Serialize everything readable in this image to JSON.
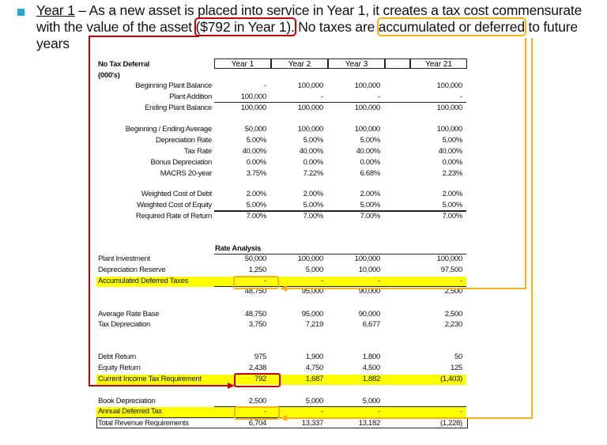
{
  "slide": {
    "intro_underlined": "Year 1",
    "intro_text_1": " – As a new asset is placed into service in Year 1, it creates a tax cost commensurate with the value of the asset ",
    "highlight_red": "($792 in Year 1).",
    "intro_text_2": " No taxes are ",
    "highlight_orange": "accumulated or deferred",
    "intro_text_3": " to future years",
    "colors": {
      "bullet": "#2fa8d0",
      "red_annotation": "#c00000",
      "orange_annotation": "#f5b21b",
      "highlight": "#ffff00"
    }
  },
  "table": {
    "title": "No Tax Deferral",
    "units": "(000's)",
    "columns": [
      "Year 1",
      "Year 2",
      "Year 3",
      "...",
      "Year 21"
    ],
    "section_title": "Rate Analysis",
    "rows": [
      {
        "label": "Beginning Plant Balance",
        "values": [
          "-",
          "100,000",
          "100,000",
          "100,000"
        ]
      },
      {
        "label": "Plant Addition",
        "values": [
          "100,000",
          "-",
          "-",
          "-"
        ]
      },
      {
        "label": "Ending Plant Balance",
        "values": [
          "100,000",
          "100,000",
          "100,000",
          "100,000"
        ]
      },
      {
        "label": "Beginning / Ending Average",
        "values": [
          "50,000",
          "100,000",
          "100,000",
          "100,000"
        ]
      },
      {
        "label": "Depreciation Rate",
        "values": [
          "5.00%",
          "5.00%",
          "5.00%",
          "5.00%"
        ]
      },
      {
        "label": "Tax Rate",
        "values": [
          "40.00%",
          "40.00%",
          "40.00%",
          "40.00%"
        ]
      },
      {
        "label": "Bonus Depreciation",
        "values": [
          "0.00%",
          "0.00%",
          "0.00%",
          "0.00%"
        ]
      },
      {
        "label": "MACRS 20-year",
        "values": [
          "3.75%",
          "7.22%",
          "6.68%",
          "2.23%"
        ]
      },
      {
        "label": "Weighted Cost of Debt",
        "values": [
          "2.00%",
          "2.00%",
          "2.00%",
          "2.00%"
        ]
      },
      {
        "label": "Weighted Cost of Equity",
        "values": [
          "5.00%",
          "5.00%",
          "5.00%",
          "5.00%"
        ]
      },
      {
        "label": "Required Rate of Return",
        "values": [
          "7.00%",
          "7.00%",
          "7.00%",
          "7.00%"
        ]
      },
      {
        "label": "Plant Investment",
        "values": [
          "50,000",
          "100,000",
          "100,000",
          "100,000"
        ]
      },
      {
        "label": "Depreciation Reserve",
        "values": [
          "1,250",
          "5,000",
          "10,000",
          "97,500"
        ]
      },
      {
        "label": "Accumulated Deferred Taxes",
        "values": [
          "-",
          "-",
          "-",
          "-"
        ],
        "highlighted": true
      },
      {
        "label": "",
        "values": [
          "48,750",
          "95,000",
          "90,000",
          "2,500"
        ]
      },
      {
        "label": "Average Rate Base",
        "values": [
          "48,750",
          "95,000",
          "90,000",
          "2,500"
        ]
      },
      {
        "label": "Tax Depreciation",
        "values": [
          "3,750",
          "7,219",
          "6,677",
          "2,230"
        ]
      },
      {
        "label": "Debt Return",
        "values": [
          "975",
          "1,900",
          "1,800",
          "50"
        ]
      },
      {
        "label": "Equity Return",
        "values": [
          "2,438",
          "4,750",
          "4,500",
          "125"
        ]
      },
      {
        "label": "Current Income Tax Requirement",
        "values": [
          "792",
          "1,687",
          "1,882",
          "(1,403)"
        ],
        "highlighted": true
      },
      {
        "label": "Book Depreciation",
        "values": [
          "2,500",
          "5,000",
          "5,000",
          ""
        ]
      },
      {
        "label": "Annual Deferred Tax",
        "values": [
          "-",
          "-",
          "-",
          "-"
        ],
        "highlighted": true
      },
      {
        "label": "Total Revenue Requirements",
        "values": [
          "6,704",
          "13,337",
          "13,182",
          "(1,228)"
        ]
      }
    ]
  }
}
